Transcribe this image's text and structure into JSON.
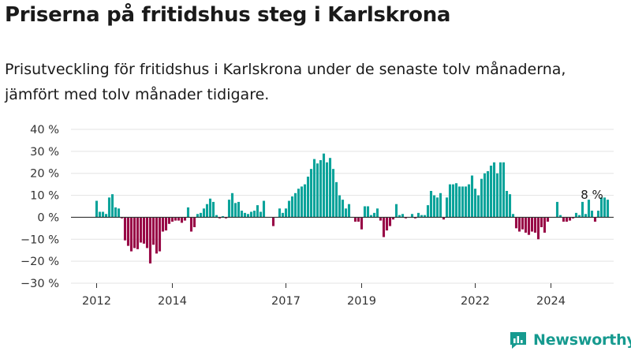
{
  "title": "Priserna på fritidshus steg i Karlskrona",
  "subtitle": "Prisutveckling för fritidshus i Karlskrona under de senaste tolv månaderna, jämfört med tolv månader tidigare.",
  "brand": {
    "name": "Newsworthy",
    "logo_icon": "newsworthy-logo-icon"
  },
  "chart_data": {
    "type": "bar",
    "unit": "%",
    "y_ticks": [
      "40 %",
      "30 %",
      "20 %",
      "10 %",
      "0 %",
      "−10 %",
      "−20 %",
      "−30 %"
    ],
    "ylim": [
      -30,
      40
    ],
    "x_ticks": [
      {
        "label": "2012",
        "date": "2012-01"
      },
      {
        "label": "2014",
        "date": "2014-01"
      },
      {
        "label": "2017",
        "date": "2017-01"
      },
      {
        "label": "2019",
        "date": "2019-01"
      },
      {
        "label": "2022",
        "date": "2022-01"
      },
      {
        "label": "2024",
        "date": "2024-01"
      }
    ],
    "start_month": "2012-01",
    "colors": {
      "positive": "#0aa39a",
      "negative": "#980846",
      "axis": "#333333",
      "grid": "#e3e3e3"
    },
    "annotation": {
      "label": "8 %",
      "date": "2025-02"
    },
    "values": [
      7.5,
      2.5,
      2.5,
      1.5,
      9,
      10.5,
      4.5,
      4,
      -0.5,
      -10.5,
      -13,
      -15.5,
      -14,
      -14.5,
      -11.5,
      -12,
      -14,
      -21,
      -12.5,
      -16.5,
      -15.5,
      -6.5,
      -6,
      -3,
      -2,
      -1.5,
      -1.5,
      -2.5,
      -1.5,
      4.5,
      -6.5,
      -4.5,
      1.5,
      2,
      4,
      6,
      8.5,
      7,
      1,
      -0.5,
      0.5,
      -0.5,
      8,
      11,
      6.5,
      7,
      3,
      2,
      1.5,
      2.5,
      3,
      5.5,
      2.5,
      7.5,
      0,
      0,
      -4,
      0,
      4,
      2,
      4,
      7.5,
      9.5,
      11,
      13,
      14,
      15,
      18.5,
      22,
      26.5,
      24.5,
      26,
      29,
      25,
      27,
      22,
      16,
      10,
      8,
      4,
      6,
      0,
      -2,
      -2,
      -5.5,
      5,
      5,
      1,
      2,
      4,
      -1.5,
      -9,
      -6,
      -4,
      -1,
      6,
      1,
      1.5,
      -0.5,
      0,
      1.5,
      -0.5,
      2,
      1,
      1,
      5.5,
      12,
      10,
      9,
      11,
      -1,
      9,
      15,
      15,
      15.5,
      14,
      14,
      14,
      15,
      19,
      13,
      10,
      17.5,
      20,
      21,
      23.5,
      25,
      20,
      25,
      25,
      12,
      10.5,
      1.5,
      -5,
      -6.5,
      -5.5,
      -7,
      -8,
      -6.5,
      -7,
      -10,
      -4.5,
      -7,
      -2,
      0,
      0,
      7,
      1,
      -2,
      -2,
      -1.5,
      -0.5,
      2,
      1,
      7,
      1.5,
      8,
      3,
      -2,
      3,
      9,
      9,
      8
    ]
  }
}
